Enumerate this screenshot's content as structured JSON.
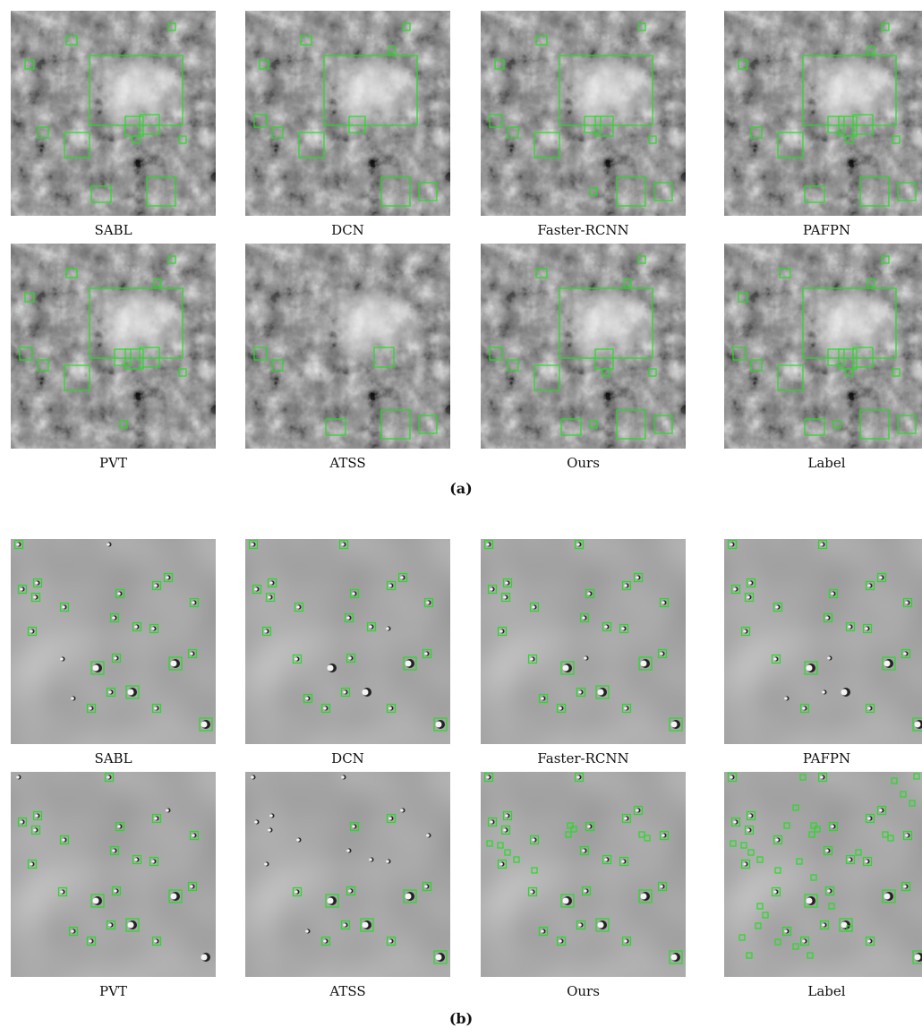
{
  "figure_a": {
    "panels": [
      {
        "label": "SABL"
      },
      {
        "label": "DCN"
      },
      {
        "label": "Faster-RCNN"
      },
      {
        "label": "PAFPN"
      },
      {
        "label": "PVT"
      },
      {
        "label": "ATSS"
      },
      {
        "label": "Ours"
      },
      {
        "label": "Label"
      }
    ],
    "tag": "(a)"
  },
  "figure_b": {
    "panels": [
      {
        "label": "SABL"
      },
      {
        "label": "DCN"
      },
      {
        "label": "Faster-RCNN"
      },
      {
        "label": "PAFPN"
      },
      {
        "label": "PVT"
      },
      {
        "label": "ATSS"
      },
      {
        "label": "Ours"
      },
      {
        "label": "Label"
      }
    ],
    "tag": "(b)"
  }
}
